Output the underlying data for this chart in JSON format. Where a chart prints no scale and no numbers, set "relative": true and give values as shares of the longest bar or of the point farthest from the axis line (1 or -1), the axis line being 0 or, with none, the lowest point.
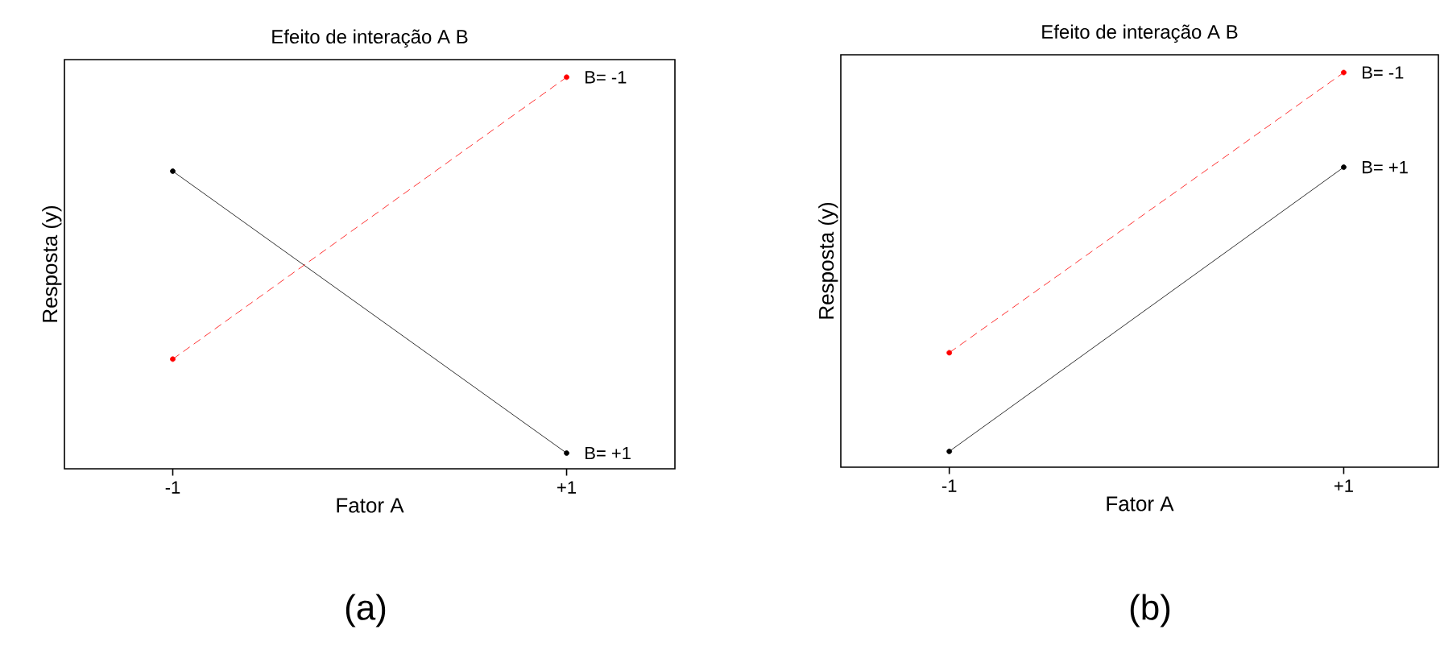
{
  "chart_data": [
    {
      "type": "line",
      "title": "Efeito de interação A B",
      "xlabel": "Fator A",
      "ylabel": "Resposta (y)",
      "relative": true,
      "categories": [
        "-1",
        "+1"
      ],
      "series": [
        {
          "name": "B= +1",
          "color": "#000000",
          "values": [
            0.76,
            0.04
          ],
          "line_style": "solid"
        },
        {
          "name": "B= -1",
          "color": "#ff0000",
          "values": [
            0.28,
            1.0
          ],
          "line_style": "dashed"
        }
      ],
      "marker": "circle",
      "grid": false,
      "legend": false,
      "tick_labels": "x",
      "annotations": [
        "(a)"
      ]
    },
    {
      "type": "line",
      "title": "Efeito de interação A B",
      "xlabel": "Fator A",
      "ylabel": "Resposta (y)",
      "relative": true,
      "categories": [
        "-1",
        "+1"
      ],
      "series": [
        {
          "name": "B= +1",
          "color": "#000000",
          "values": [
            0.04,
            0.76
          ],
          "line_style": "solid"
        },
        {
          "name": "B= -1",
          "color": "#ff0000",
          "values": [
            0.29,
            1.0
          ],
          "line_style": "dashed"
        }
      ],
      "marker": "circle",
      "grid": false,
      "legend": false,
      "tick_labels": "x",
      "annotations": [
        "(b)"
      ]
    }
  ]
}
